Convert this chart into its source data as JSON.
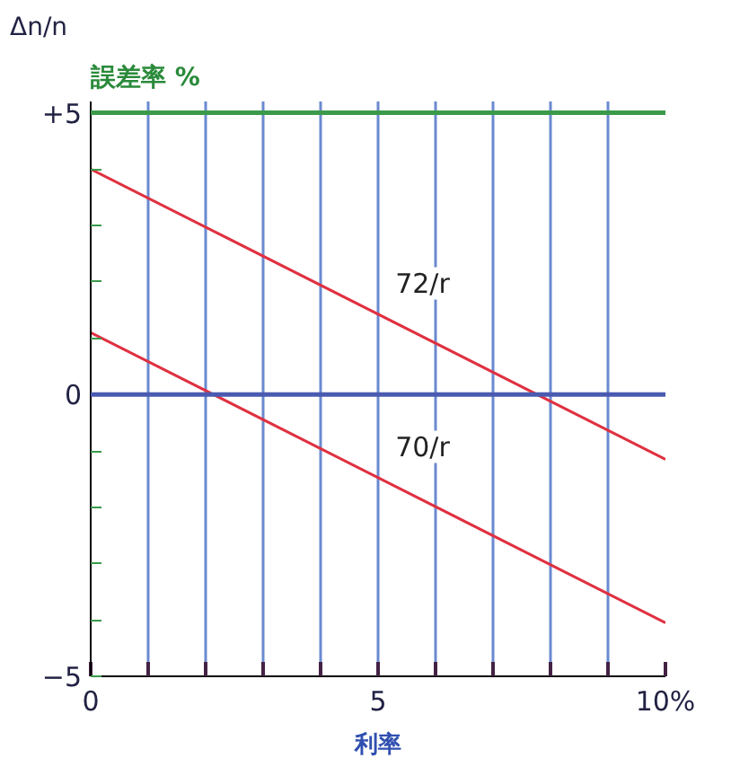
{
  "chart_data": {
    "type": "line",
    "subtitle": "誤差率 %",
    "ylabel": "Δn/n",
    "xlabel": "利率",
    "x": [
      0,
      10
    ],
    "series": [
      {
        "name": "72/r",
        "color": "#e03040",
        "values": [
          4.0,
          -1.15
        ]
      },
      {
        "name": "70/r",
        "color": "#e03040",
        "values": [
          1.1,
          -4.05
        ]
      }
    ],
    "xlim": [
      0,
      10
    ],
    "ylim": [
      -5,
      5.2
    ],
    "xticks": [
      0,
      {
        "value": 1,
        "label": null
      },
      {
        "value": 2,
        "label": null
      },
      {
        "value": 3,
        "label": null
      },
      {
        "value": 4,
        "label": null
      },
      5,
      {
        "value": 6,
        "label": null
      },
      {
        "value": 7,
        "label": null
      },
      {
        "value": 8,
        "label": null
      },
      {
        "value": 9,
        "label": null
      },
      {
        "value": 10,
        "label": "10%"
      }
    ],
    "yticks": [
      {
        "value": -5,
        "label": "−5"
      },
      {
        "value": -4,
        "label": null
      },
      {
        "value": -3,
        "label": null
      },
      {
        "value": -2,
        "label": null
      },
      {
        "value": -1,
        "label": null
      },
      0,
      {
        "value": 1,
        "label": null
      },
      {
        "value": 2,
        "label": null
      },
      {
        "value": 3,
        "label": null
      },
      {
        "value": 4,
        "label": null
      },
      {
        "value": 5,
        "label": "+5"
      }
    ],
    "ref_lines": [
      {
        "axis": "y",
        "value": 5,
        "color": "#3a9a4a"
      },
      {
        "axis": "y",
        "value": 0,
        "color": "#4a5ab0"
      }
    ],
    "grid": "x",
    "marker": "none",
    "line_style": "solid"
  }
}
